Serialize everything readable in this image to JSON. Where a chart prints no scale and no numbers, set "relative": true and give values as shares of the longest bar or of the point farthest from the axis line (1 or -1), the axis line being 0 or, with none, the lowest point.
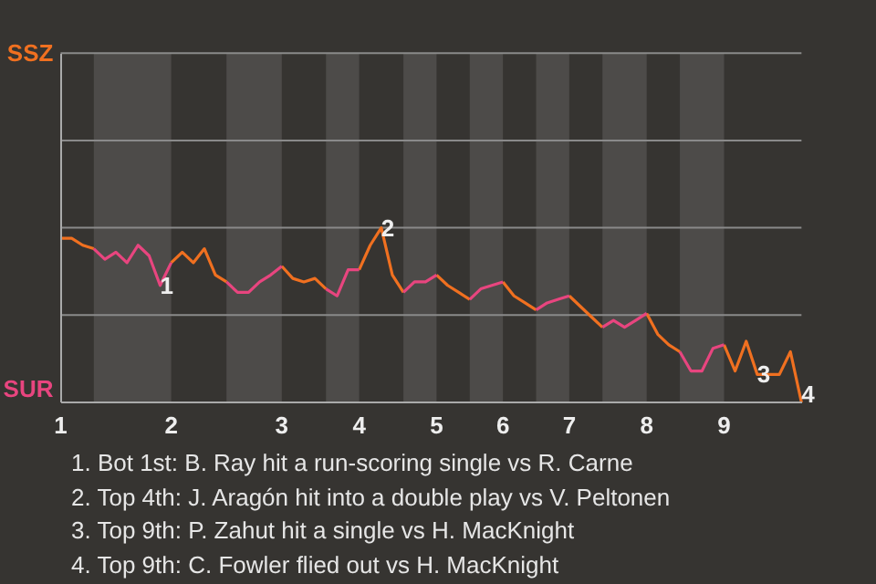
{
  "chart_data": {
    "type": "line",
    "relative": true,
    "categories": [
      "1",
      null,
      null,
      null,
      null,
      null,
      null,
      null,
      null,
      null,
      "2",
      null,
      null,
      null,
      null,
      null,
      null,
      null,
      null,
      null,
      "3",
      null,
      null,
      null,
      null,
      null,
      null,
      "4",
      null,
      null,
      null,
      null,
      null,
      null,
      "5",
      null,
      null,
      null,
      null,
      null,
      "6",
      null,
      null,
      null,
      null,
      null,
      "7",
      null,
      null,
      null,
      null,
      null,
      null,
      "8",
      null,
      null,
      null,
      null,
      null,
      null,
      "9",
      null,
      null,
      null,
      null,
      null,
      null,
      null
    ],
    "line_style": "solid",
    "marker": "none",
    "ref_lines": [
      {
        "axis": "y",
        "value": 0.5,
        "color": "#8a8a8a"
      },
      {
        "axis": "y",
        "value": 1,
        "color": "#8a8a8a"
      },
      {
        "axis": "y",
        "value": 1.5,
        "color": "#8a8a8a"
      },
      {
        "axis": "y",
        "value": 2,
        "color": "#8a8a8a"
      }
    ],
    "series": [
      {
        "color": "#f07020",
        "values": [
          0.94,
          0.94,
          0.9,
          0.88,
          null,
          null,
          null,
          null,
          null,
          null,
          0.8,
          0.86,
          0.8,
          0.88,
          0.73,
          0.69,
          null,
          null,
          null,
          null,
          0.78,
          0.71,
          0.69,
          0.71,
          0.65,
          null,
          null,
          0.76,
          0.9,
          1,
          0.73,
          0.63,
          null,
          null,
          0.73,
          0.67,
          0.63,
          0.59,
          null,
          null,
          0.69,
          0.61,
          0.57,
          0.53,
          null,
          null,
          0.61,
          0.55,
          0.49,
          0.43,
          null,
          null,
          null,
          0.51,
          0.39,
          0.33,
          0.29,
          null,
          null,
          null,
          0.33,
          0.18,
          0.35,
          0.16,
          0.16,
          0.16,
          0.29,
          0
        ]
      },
      {
        "color": "#e8457f",
        "values": [
          null,
          null,
          null,
          0.88,
          0.82,
          0.86,
          0.8,
          0.9,
          0.84,
          0.67,
          0.8,
          null,
          null,
          null,
          null,
          0.69,
          0.63,
          0.63,
          0.69,
          0.73,
          0.78,
          null,
          null,
          null,
          0.65,
          0.61,
          0.76,
          0.76,
          null,
          null,
          null,
          0.63,
          0.69,
          0.69,
          0.73,
          null,
          null,
          0.59,
          0.65,
          0.67,
          0.69,
          null,
          null,
          0.53,
          0.57,
          0.59,
          0.61,
          null,
          null,
          0.43,
          0.47,
          0.43,
          0.47,
          0.51,
          null,
          null,
          0.29,
          0.18,
          0.18,
          0.31,
          0.33,
          null,
          null,
          null,
          null,
          null,
          null,
          null
        ]
      }
    ],
    "annotations": [
      "SSZ",
      "SUR",
      {
        "text": "1",
        "y": 0.67
      },
      {
        "text": "2",
        "y": 1
      },
      {
        "text": "3",
        "y": 0.16
      },
      {
        "text": "4",
        "y": 0
      },
      "1. Bot 1st: B. Ray hit a run-scoring single vs R. Carne",
      "2. Top 4th: J. Aragón hit into a double play vs V. Peltonen",
      "3. Top 9th: P. Zahut hit a single vs H. MacKnight",
      "4. Top 9th: C. Fowler flied out vs H. MacKnight"
    ]
  }
}
